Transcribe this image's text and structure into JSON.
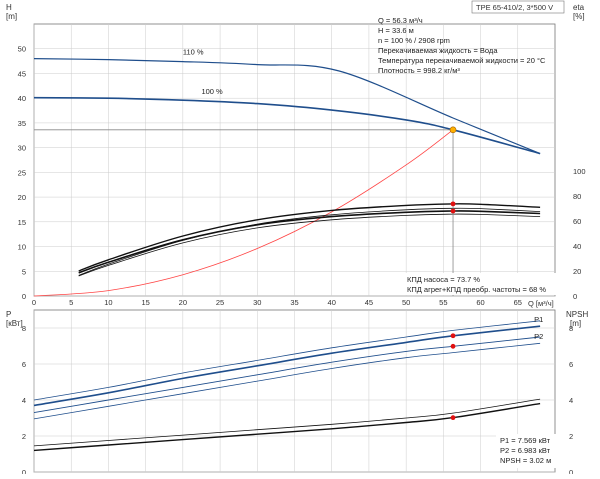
{
  "model_label": "TPE 65-410/2, 3*500 V",
  "colors": {
    "envelope": "#c3d2e2",
    "light_fill": "#e6f0fa",
    "head_curve": "#1f4e8c",
    "eta_curve": "#111111",
    "system_curve": "#ff4444",
    "duty_point": "#ffb000",
    "marker": "#e01010",
    "grid": "#cccccc",
    "frame": "#777777"
  },
  "info_lines": [
    "Q = 56.3 м³/ч",
    "H = 33.6 м",
    "n = 100 % / 2908 rpm",
    "Перекачиваемая жидкость = Вода",
    "Температура перекачиваемой жидкости = 20 °C",
    "Плотность = 998.2 кг/м³"
  ],
  "eff_lines": [
    "КПД насоса = 73.7 %",
    "КПД агрег+КПД преобр. частоты = 68 %"
  ],
  "power_lines": [
    "P1 = 7.569 кВт",
    "P2 = 6.983 кВт",
    "NPSH = 3.02 м"
  ],
  "chart_data": [
    {
      "type": "line",
      "ylabel_left": "H",
      "unit_left": "[m]",
      "ylabel_right": "eta",
      "unit_right": "[%]",
      "xlabel": "Q [м³/ч]",
      "xlim": [
        0,
        70
      ],
      "ylim_left": [
        0,
        55
      ],
      "ylim_right": [
        0,
        100
      ],
      "x_ticks": [
        "0",
        "5",
        "10",
        "15",
        "20",
        "25",
        "30",
        "35",
        "40",
        "45",
        "50",
        "55",
        "60",
        "65"
      ],
      "y_ticks_left": [
        "0",
        "5",
        "10",
        "15",
        "20",
        "25",
        "30",
        "35",
        "40",
        "45",
        "50"
      ],
      "y_ticks_right": [
        "0",
        "20",
        "40",
        "60",
        "80",
        "100"
      ],
      "grid": true,
      "duty_point": {
        "x": 56.3,
        "y": 33.6
      },
      "eta_points": [
        {
          "x": 56.3,
          "eta": 73.7
        },
        {
          "x": 56.3,
          "eta": 68
        }
      ],
      "series": [
        {
          "name": "110 %",
          "axis": "left",
          "x": [
            0,
            10,
            20,
            30,
            41,
            56.3,
            68
          ],
          "y": [
            48,
            47.8,
            47.4,
            46.8,
            45.5,
            36,
            28.8
          ]
        },
        {
          "name": "100 %",
          "axis": "left",
          "x": [
            0,
            10,
            20,
            30,
            40,
            50,
            56.3,
            68
          ],
          "y": [
            40.1,
            40.0,
            39.6,
            38.9,
            37.6,
            35.6,
            33.6,
            28.8
          ]
        },
        {
          "axis": "left",
          "x": [
            0,
            10,
            20,
            30,
            40,
            50,
            56.3
          ],
          "y": [
            0,
            1.1,
            4.3,
            9.6,
            17.0,
            26.5,
            33.6
          ]
        },
        {
          "axis": "right",
          "x": [
            6,
            10,
            20,
            30,
            40,
            50,
            56.3,
            60,
            68
          ],
          "y": [
            20,
            29,
            48,
            61,
            68.5,
            72.5,
            73.7,
            73.4,
            71
          ]
        },
        {
          "axis": "right",
          "x": [
            6,
            10,
            20,
            30,
            40,
            50,
            56.3,
            60,
            68
          ],
          "y": [
            18.5,
            27,
            45,
            57,
            63.5,
            67,
            68,
            67.8,
            66
          ]
        }
      ]
    },
    {
      "type": "line",
      "ylabel_left": "P",
      "unit_left": "[кВт]",
      "ylabel_right": "NPSH",
      "unit_right": "[m]",
      "xlim": [
        0,
        70
      ],
      "ylim_left": [
        0,
        9
      ],
      "ylim_right": [
        0,
        9
      ],
      "y_ticks_left": [
        "0",
        "2",
        "4",
        "6",
        "8"
      ],
      "y_ticks_right": [
        "0",
        "2",
        "4",
        "6",
        "8"
      ],
      "grid": true,
      "points": [
        {
          "x": 56.3,
          "y": 7.569
        },
        {
          "x": 56.3,
          "y": 6.983
        },
        {
          "x": 56.3,
          "y": 3.02
        }
      ],
      "series": [
        {
          "name": "P1",
          "axis": "left",
          "x": [
            0,
            10,
            20,
            30,
            40,
            50,
            56.3,
            68
          ],
          "y": [
            3.7,
            4.4,
            5.2,
            5.9,
            6.6,
            7.2,
            7.569,
            8.1
          ]
        },
        {
          "name": "P2",
          "axis": "left",
          "x": [
            0,
            10,
            20,
            30,
            40,
            50,
            56.3,
            68
          ],
          "y": [
            3.3,
            4.0,
            4.7,
            5.4,
            6.1,
            6.7,
            6.983,
            7.5
          ]
        },
        {
          "axis": "right",
          "x": [
            0,
            10,
            20,
            30,
            40,
            50,
            56.3,
            68
          ],
          "y": [
            1.2,
            1.5,
            1.8,
            2.1,
            2.4,
            2.75,
            3.02,
            3.8
          ]
        }
      ]
    }
  ]
}
